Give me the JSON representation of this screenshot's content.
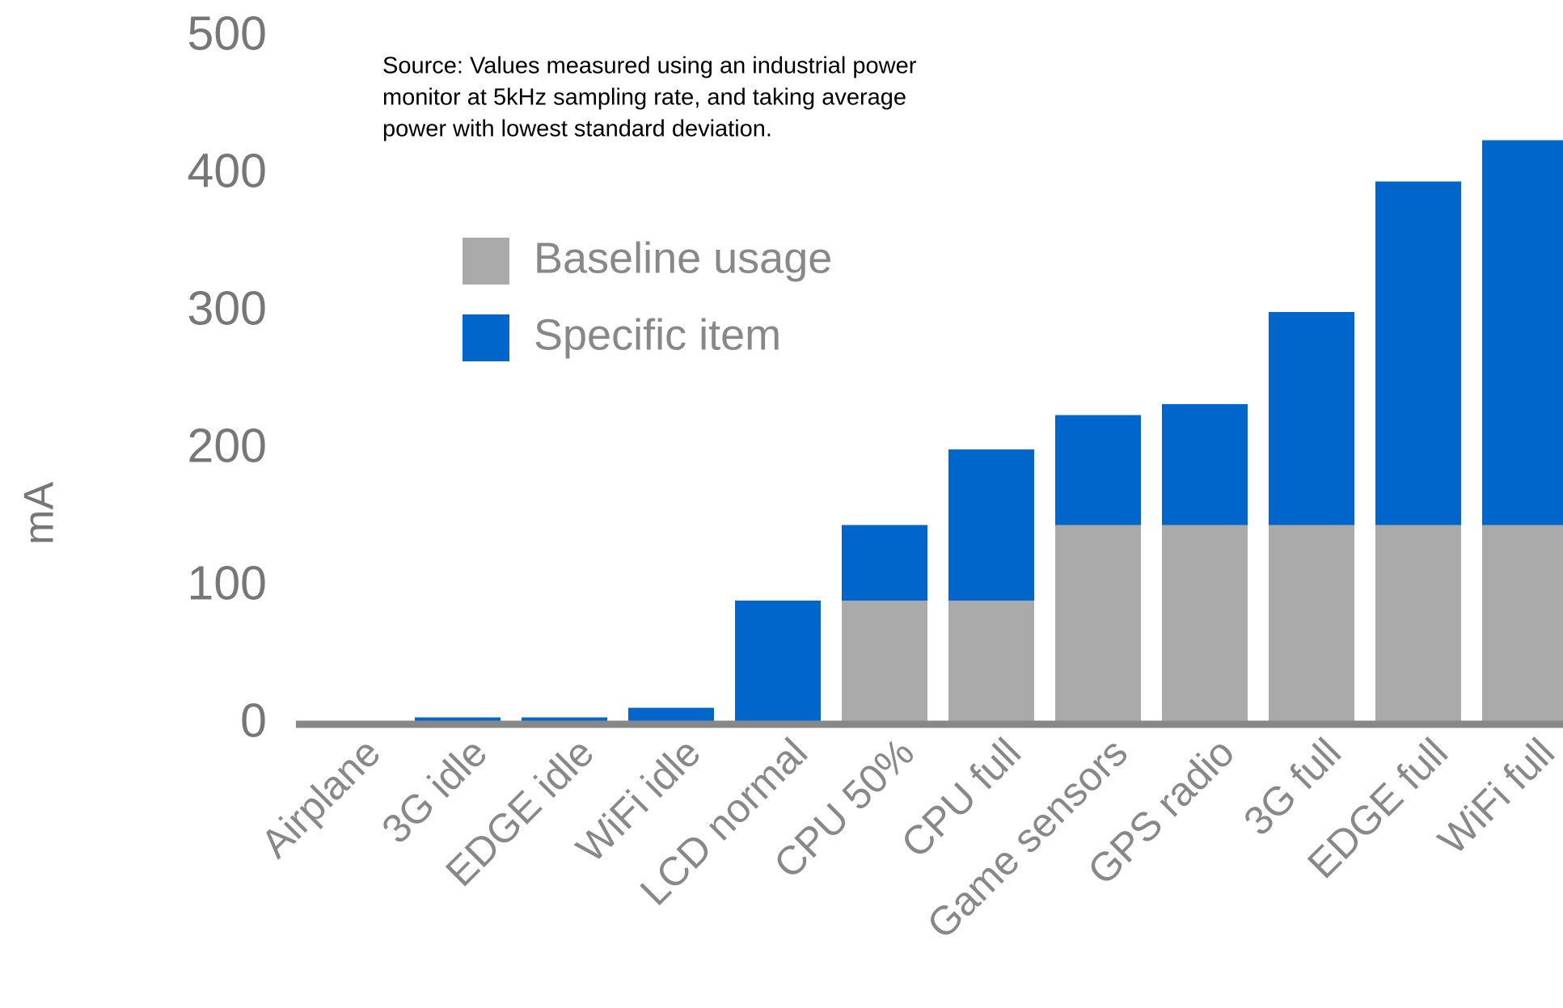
{
  "chart_data": {
    "type": "stacked_bar",
    "y_label": "mA",
    "annotation": [
      "Source: Values measured using an industrial power",
      "monitor at 5kHz sampling rate, and taking average",
      "power with lowest standard deviation."
    ],
    "categories": [
      "Airplane",
      "3G idle",
      "EDGE idle",
      "WiFi idle",
      "LCD normal",
      "CPU 50%",
      "CPU full",
      "Game sensors",
      "GPS radio",
      "3G full",
      "EDGE full",
      "WiFi full"
    ],
    "series": [
      {
        "name": "Baseline usage",
        "color": "#aaaaaa",
        "values": [
          0,
          0,
          0,
          0,
          0,
          90,
          90,
          145,
          145,
          145,
          145,
          145
        ]
      },
      {
        "name": "Specific item",
        "color": "#0066cc",
        "values": [
          2,
          5,
          5,
          12,
          90,
          55,
          110,
          80,
          88,
          155,
          250,
          280
        ]
      }
    ],
    "ylim": [
      0,
      500
    ],
    "yticks": [
      0,
      100,
      200,
      300,
      400,
      500
    ],
    "legend": "upper-left"
  }
}
